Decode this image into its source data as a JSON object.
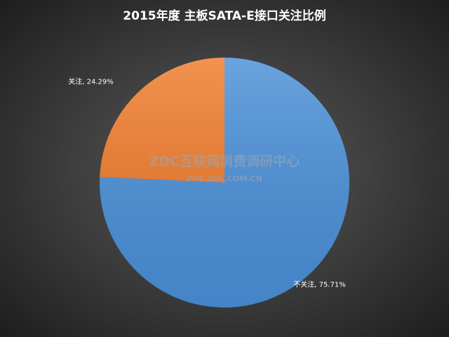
{
  "chart_data": {
    "type": "pie",
    "title": "2015年度 主板SATA-E接口关注比例",
    "categories": [
      "不关注",
      "关注"
    ],
    "values": [
      75.71,
      24.29
    ],
    "value_labels": [
      "不关注, 75.71%",
      "关注, 24.29%"
    ],
    "colors": [
      "#4a90d9",
      "#f07b2a"
    ],
    "watermark": [
      "ZDC互联网消费调研中心",
      "ZDC.ZOL.COM.CN"
    ]
  }
}
